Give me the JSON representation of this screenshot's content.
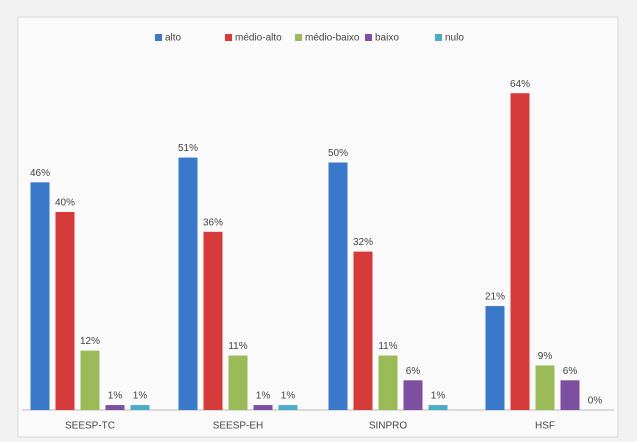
{
  "chart_data": {
    "type": "bar",
    "categories": [
      "SEESP-TC",
      "SEESP-EH",
      "SINPRO",
      "HSF"
    ],
    "series": [
      {
        "name": "alto",
        "color": "#3a78c9",
        "values": [
          46,
          51,
          50,
          21
        ],
        "value_labels": [
          "46%",
          "51%",
          "50%",
          "21%"
        ]
      },
      {
        "name": "médio-alto",
        "color": "#d63b3b",
        "values": [
          40,
          36,
          32,
          64
        ],
        "value_labels": [
          "40%",
          "36%",
          "32%",
          "64%"
        ]
      },
      {
        "name": "médio-baixo",
        "color": "#9bbb59",
        "values": [
          12,
          11,
          11,
          9
        ],
        "value_labels": [
          "12%",
          "11%",
          "11%",
          "9%"
        ]
      },
      {
        "name": "baixo",
        "color": "#7d4fa0",
        "values": [
          1,
          1,
          6,
          6
        ],
        "value_labels": [
          "1%",
          "1%",
          "6%",
          "6%"
        ]
      },
      {
        "name": "nulo",
        "color": "#4bacc6",
        "values": [
          1,
          1,
          1,
          0
        ],
        "value_labels": [
          "1%",
          "1%",
          "1%",
          "0%"
        ]
      }
    ]
  }
}
